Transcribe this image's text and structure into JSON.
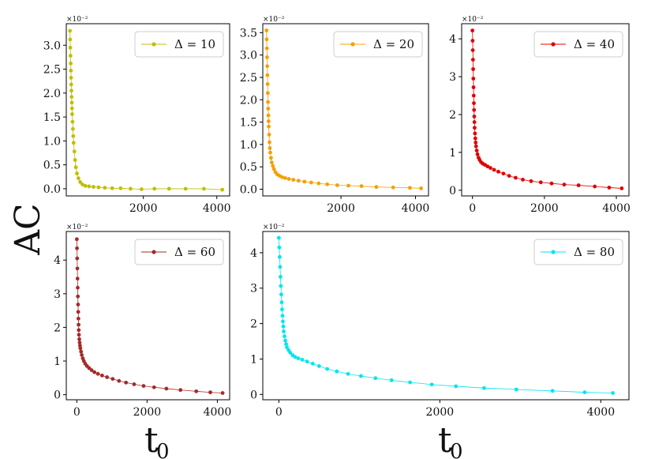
{
  "figure": {
    "ylabel": "AC",
    "xlabel_main": "t",
    "xlabel_sub": "0",
    "multiplier": "×10⁻²"
  },
  "chart_data": [
    {
      "type": "line",
      "panel": "top-left",
      "legend": {
        "label": "Δ = 10",
        "placement": "top-right"
      },
      "color": "#bfbf00",
      "multiplier": "×10⁻²",
      "xlim": [
        -100,
        4350
      ],
      "ylim": [
        -0.15,
        3.45
      ],
      "xticks": [
        2000,
        4000
      ],
      "yticks": [
        0.0,
        0.5,
        1.0,
        1.5,
        2.0,
        2.5,
        3.0
      ],
      "ytick_labels": [
        "0.0",
        "0.5",
        "1.0",
        "1.5",
        "2.0",
        "2.5",
        "3.0"
      ],
      "x": [
        0,
        5,
        10,
        15,
        20,
        25,
        30,
        35,
        40,
        45,
        50,
        55,
        60,
        70,
        80,
        90,
        100,
        120,
        140,
        160,
        190,
        230,
        280,
        340,
        420,
        520,
        640,
        780,
        950,
        1150,
        1380,
        1650,
        1950,
        2300,
        2700,
        3150,
        3650,
        4150
      ],
      "y": [
        3.3,
        3.12,
        2.95,
        2.78,
        2.62,
        2.47,
        2.32,
        2.18,
        2.05,
        1.92,
        1.8,
        1.68,
        1.56,
        1.4,
        1.25,
        1.1,
        0.96,
        0.78,
        0.6,
        0.45,
        0.32,
        0.22,
        0.14,
        0.09,
        0.06,
        0.05,
        0.04,
        0.03,
        0.02,
        0.01,
        0.01,
        0.0,
        -0.01,
        0.0,
        0.0,
        0.0,
        0.0,
        -0.02
      ]
    },
    {
      "type": "line",
      "panel": "top-middle",
      "legend": {
        "label": "Δ = 20",
        "placement": "top-right"
      },
      "color": "#f5a000",
      "multiplier": "×10⁻²",
      "xlim": [
        -100,
        4350
      ],
      "ylim": [
        -0.15,
        3.7
      ],
      "xticks": [
        2000,
        4000
      ],
      "yticks": [
        0.0,
        0.5,
        1.0,
        1.5,
        2.0,
        2.5,
        3.0,
        3.5
      ],
      "ytick_labels": [
        "0.0",
        "0.5",
        "1.0",
        "1.5",
        "2.0",
        "2.5",
        "3.0",
        "3.5"
      ],
      "x": [
        0,
        5,
        10,
        15,
        20,
        25,
        30,
        35,
        40,
        45,
        50,
        55,
        60,
        70,
        80,
        90,
        100,
        120,
        140,
        170,
        200,
        240,
        290,
        350,
        420,
        500,
        600,
        720,
        860,
        1020,
        1200,
        1400,
        1630,
        1900,
        2200,
        2550,
        2950,
        3400,
        3850,
        4150
      ],
      "y": [
        3.55,
        3.35,
        3.15,
        2.95,
        2.75,
        2.55,
        2.35,
        2.15,
        1.95,
        1.8,
        1.65,
        1.52,
        1.4,
        1.22,
        1.05,
        0.92,
        0.82,
        0.7,
        0.6,
        0.52,
        0.45,
        0.38,
        0.33,
        0.3,
        0.27,
        0.25,
        0.23,
        0.21,
        0.19,
        0.17,
        0.15,
        0.13,
        0.11,
        0.09,
        0.08,
        0.07,
        0.05,
        0.04,
        0.03,
        0.02
      ]
    },
    {
      "type": "line",
      "panel": "top-right",
      "legend": {
        "label": "Δ = 40",
        "placement": "top-right"
      },
      "color": "#e00000",
      "multiplier": "×10⁻²",
      "xlim": [
        -300,
        4350
      ],
      "ylim": [
        -0.15,
        4.4
      ],
      "xticks": [
        0,
        2000,
        4000
      ],
      "yticks": [
        0,
        1,
        2,
        3,
        4
      ],
      "ytick_labels": [
        "0",
        "1",
        "2",
        "3",
        "4"
      ],
      "x": [
        0,
        5,
        10,
        15,
        20,
        25,
        30,
        35,
        40,
        45,
        50,
        55,
        60,
        70,
        80,
        90,
        100,
        120,
        140,
        170,
        200,
        240,
        290,
        350,
        420,
        500,
        600,
        720,
        860,
        1020,
        1200,
        1400,
        1630,
        1900,
        2200,
        2550,
        2950,
        3400,
        3800,
        4150
      ],
      "y": [
        4.22,
        3.95,
        3.7,
        3.45,
        3.2,
        2.95,
        2.72,
        2.5,
        2.3,
        2.12,
        1.95,
        1.8,
        1.65,
        1.5,
        1.37,
        1.26,
        1.16,
        1.05,
        0.95,
        0.86,
        0.8,
        0.74,
        0.7,
        0.67,
        0.63,
        0.59,
        0.54,
        0.49,
        0.44,
        0.38,
        0.33,
        0.28,
        0.24,
        0.21,
        0.18,
        0.15,
        0.13,
        0.1,
        0.07,
        0.05
      ]
    },
    {
      "type": "line",
      "panel": "bottom-left",
      "legend": {
        "label": "Δ = 60",
        "placement": "top-right"
      },
      "color": "#a52a2a",
      "multiplier": "×10⁻²",
      "xlim": [
        -300,
        4350
      ],
      "ylim": [
        -0.15,
        4.85
      ],
      "xticks": [
        0,
        2000,
        4000
      ],
      "yticks": [
        0,
        1,
        2,
        3,
        4
      ],
      "ytick_labels": [
        "0",
        "1",
        "2",
        "3",
        "4"
      ],
      "x": [
        0,
        5,
        10,
        15,
        20,
        25,
        30,
        35,
        40,
        45,
        50,
        55,
        60,
        70,
        80,
        90,
        100,
        120,
        140,
        170,
        200,
        240,
        290,
        350,
        420,
        500,
        600,
        720,
        860,
        1020,
        1200,
        1400,
        1630,
        1900,
        2200,
        2550,
        2950,
        3400,
        3800,
        4150
      ],
      "y": [
        4.62,
        4.35,
        4.05,
        3.75,
        3.45,
        3.18,
        2.92,
        2.68,
        2.46,
        2.26,
        2.08,
        1.92,
        1.78,
        1.65,
        1.55,
        1.46,
        1.38,
        1.28,
        1.18,
        1.08,
        1.0,
        0.92,
        0.85,
        0.79,
        0.73,
        0.67,
        0.62,
        0.57,
        0.52,
        0.47,
        0.41,
        0.36,
        0.31,
        0.26,
        0.22,
        0.18,
        0.14,
        0.1,
        0.07,
        0.05
      ]
    },
    {
      "type": "line",
      "panel": "bottom-right",
      "legend": {
        "label": "Δ = 80",
        "placement": "top-right"
      },
      "color": "#00e5ee",
      "multiplier": "×10⁻²",
      "xlim": [
        -200,
        4350
      ],
      "ylim": [
        -0.15,
        4.6
      ],
      "xticks": [
        0,
        2000,
        4000
      ],
      "yticks": [
        0,
        1,
        2,
        3,
        4
      ],
      "ytick_labels": [
        "0",
        "1",
        "2",
        "3",
        "4"
      ],
      "x": [
        0,
        5,
        10,
        15,
        20,
        25,
        30,
        35,
        40,
        45,
        50,
        55,
        60,
        70,
        80,
        90,
        100,
        120,
        140,
        170,
        200,
        240,
        290,
        350,
        420,
        500,
        600,
        720,
        860,
        1020,
        1200,
        1400,
        1630,
        1900,
        2200,
        2550,
        2950,
        3400,
        3800,
        4150
      ],
      "y": [
        4.42,
        4.15,
        3.88,
        3.6,
        3.32,
        3.06,
        2.82,
        2.6,
        2.4,
        2.22,
        2.06,
        1.92,
        1.78,
        1.64,
        1.52,
        1.42,
        1.33,
        1.25,
        1.18,
        1.11,
        1.06,
        1.02,
        0.98,
        0.93,
        0.87,
        0.8,
        0.72,
        0.65,
        0.58,
        0.52,
        0.46,
        0.4,
        0.34,
        0.28,
        0.23,
        0.18,
        0.14,
        0.1,
        0.06,
        0.04
      ]
    }
  ]
}
